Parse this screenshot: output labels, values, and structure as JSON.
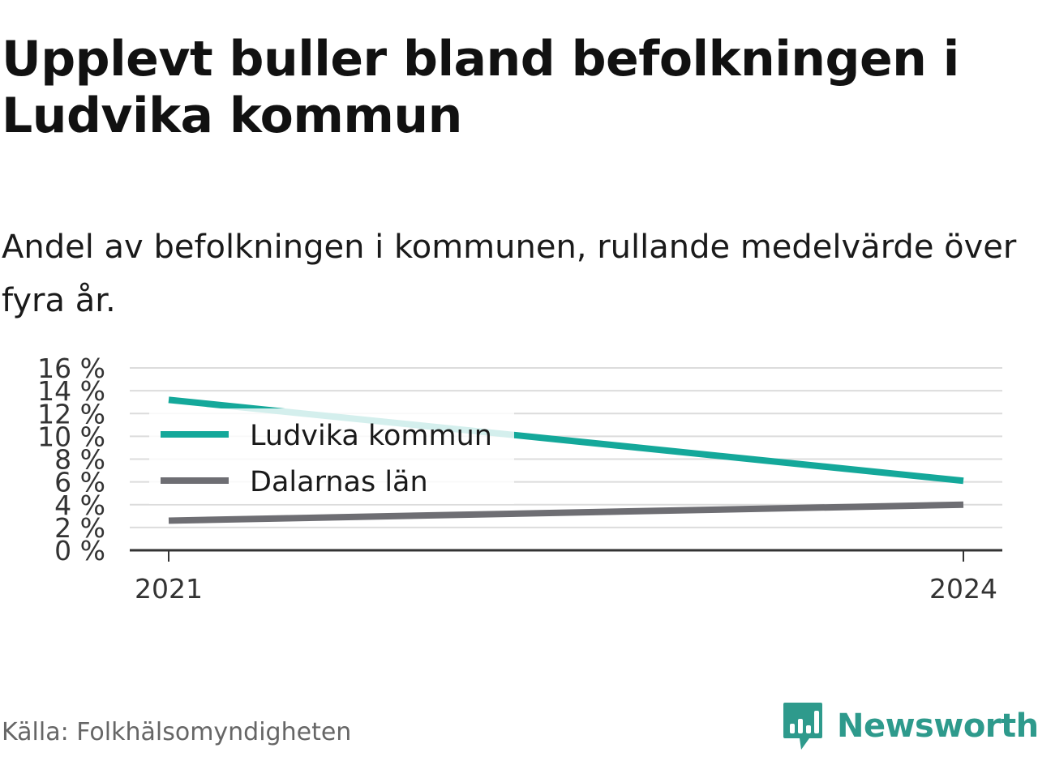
{
  "header": {
    "title": "Upplevt buller bland befolkningen i Ludvika kommun",
    "subtitle": "Andel av befolkningen i kommunen, rullande medelvärde över fyra år."
  },
  "chart_data": {
    "type": "line",
    "x": [
      2021,
      2024
    ],
    "x_tick_labels": [
      "2021",
      "2024"
    ],
    "series": [
      {
        "name": "Ludvika kommun",
        "values": [
          13.2,
          6.1
        ],
        "color": "#14a89a"
      },
      {
        "name": "Dalarnas län",
        "values": [
          2.6,
          4.0
        ],
        "color": "#6e6e73"
      }
    ],
    "ylim": [
      0,
      16
    ],
    "y_ticks": [
      0,
      2,
      4,
      6,
      8,
      10,
      12,
      14,
      16
    ],
    "y_tick_labels": [
      "0 %",
      "2 %",
      "4 %",
      "6 %",
      "8 %",
      "10 %",
      "12 %",
      "14 %",
      "16 %"
    ],
    "grid": true,
    "legend_placement": "top-left"
  },
  "footer": {
    "source": "Källa: Folkhälsomyndigheten",
    "brand": "Newsworthy",
    "brand_icon": "bar-chart-speech-bubble-icon",
    "brand_color": "#2e9a8c"
  }
}
